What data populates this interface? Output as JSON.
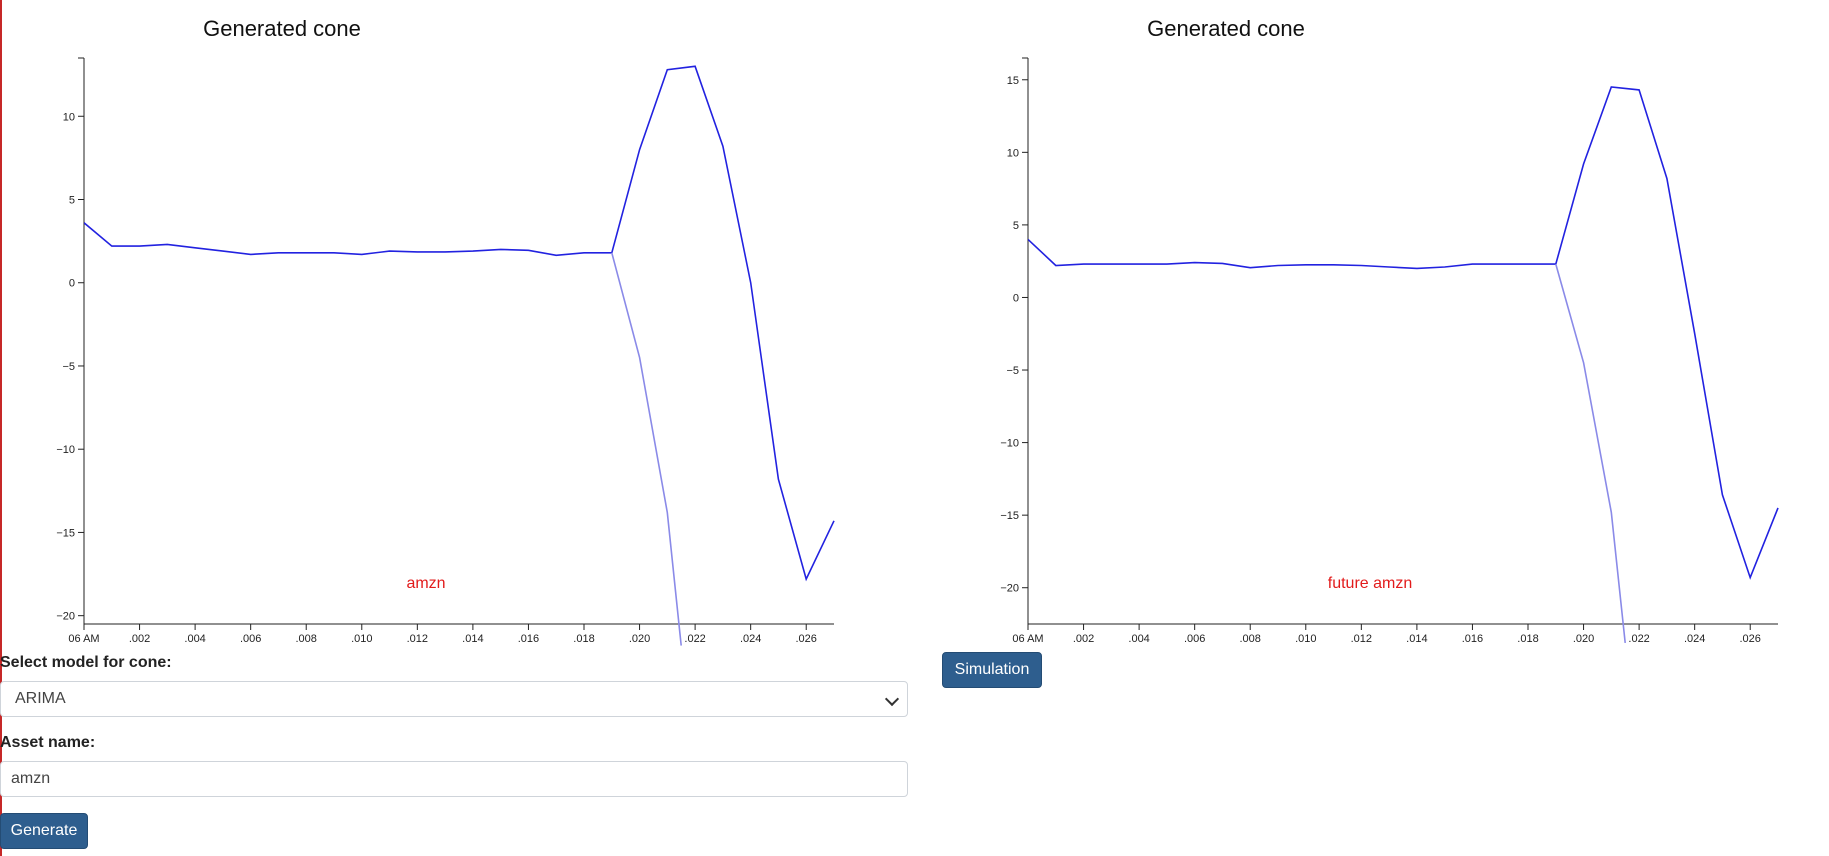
{
  "charts": [
    {
      "title": "Generated cone",
      "annotation": "amzn",
      "chart_data": {
        "type": "line",
        "title": "Generated cone",
        "xlabel": "",
        "ylabel": "",
        "x_tick_labels": [
          "06 AM",
          ".002",
          ".004",
          ".006",
          ".008",
          ".010",
          ".012",
          ".014",
          ".016",
          ".018",
          ".020",
          ".022",
          ".024",
          ".026"
        ],
        "x_range": [
          0,
          27
        ],
        "ylim": [
          -20.5,
          13.5
        ],
        "y_ticks": [
          10,
          5,
          0,
          -5,
          -10,
          -15,
          -20
        ],
        "y_tick_labels": [
          "10",
          "5",
          "0",
          "−5",
          "−10",
          "−15",
          "−20"
        ],
        "grid": false,
        "series": [
          {
            "color": "#2222e0",
            "x": [
              0,
              1,
              2,
              3,
              4,
              5,
              6,
              7,
              8,
              9,
              10,
              11,
              12,
              13,
              14,
              15,
              16,
              17,
              18,
              19,
              20,
              21,
              22,
              23,
              24,
              25,
              26,
              27
            ],
            "y": [
              3.6,
              2.2,
              2.2,
              2.3,
              2.1,
              1.9,
              1.7,
              1.8,
              1.8,
              1.8,
              1.7,
              1.9,
              1.85,
              1.85,
              1.9,
              2.0,
              1.95,
              1.65,
              1.8,
              1.8,
              8.0,
              12.8,
              13.0,
              8.2,
              0.0,
              -11.8,
              -17.8,
              -14.3
            ]
          },
          {
            "color": "#8a8ae8",
            "x": [
              19,
              20,
              21,
              21.5
            ],
            "y": [
              1.8,
              -4.5,
              -13.8,
              -21.8
            ]
          }
        ]
      }
    },
    {
      "title": "Generated cone",
      "annotation": "future amzn",
      "chart_data": {
        "type": "line",
        "title": "Generated cone",
        "xlabel": "",
        "ylabel": "",
        "x_tick_labels": [
          "06 AM",
          ".002",
          ".004",
          ".006",
          ".008",
          ".010",
          ".012",
          ".014",
          ".016",
          ".018",
          ".020",
          ".022",
          ".024",
          ".026"
        ],
        "x_range": [
          0,
          27
        ],
        "ylim": [
          -22.5,
          16.5
        ],
        "y_ticks": [
          15,
          10,
          5,
          0,
          -5,
          -10,
          -15,
          -20
        ],
        "y_tick_labels": [
          "15",
          "10",
          "5",
          "0",
          "−5",
          "−10",
          "−15",
          "−20"
        ],
        "grid": false,
        "series": [
          {
            "color": "#2222e0",
            "x": [
              0,
              1,
              2,
              3,
              4,
              5,
              6,
              7,
              8,
              9,
              10,
              11,
              12,
              13,
              14,
              15,
              16,
              17,
              18,
              19,
              20,
              21,
              22,
              23,
              24,
              25,
              26,
              27
            ],
            "y": [
              4.0,
              2.2,
              2.3,
              2.3,
              2.3,
              2.3,
              2.4,
              2.35,
              2.05,
              2.2,
              2.25,
              2.25,
              2.2,
              2.1,
              2.0,
              2.1,
              2.3,
              2.3,
              2.3,
              2.3,
              9.2,
              14.5,
              14.3,
              8.2,
              -2.5,
              -13.6,
              -19.3,
              -14.5
            ]
          },
          {
            "color": "#8a8ae8",
            "x": [
              19,
              20,
              21,
              21.5
            ],
            "y": [
              2.3,
              -4.5,
              -14.8,
              -23.8
            ]
          }
        ]
      }
    }
  ],
  "form": {
    "model_label": "Select model for cone:",
    "model_value": "ARIMA",
    "asset_label": "Asset name:",
    "asset_value": "amzn",
    "generate_label": "Generate",
    "simulation_label": "Simulation"
  }
}
